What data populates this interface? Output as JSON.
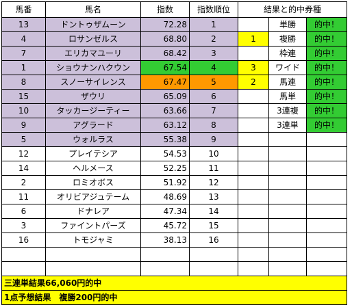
{
  "headers": [
    "馬番",
    "馬名",
    "指数",
    "指数順位",
    "結果と的中券種"
  ],
  "rows": [
    {
      "num": "13",
      "name": "ドントゥザムーン",
      "score": "72.28",
      "rank": "1",
      "result": "",
      "ticket": "単勝",
      "hit": "的中！"
    },
    {
      "num": "4",
      "name": "ロサンゼルス",
      "score": "68.80",
      "rank": "2",
      "result": "1",
      "ticket": "複勝",
      "hit": "的中！"
    },
    {
      "num": "7",
      "name": "エリカマユーリ",
      "score": "68.42",
      "rank": "3",
      "result": "",
      "ticket": "枠連",
      "hit": "的中！"
    },
    {
      "num": "1",
      "name": "ショウナンハクウン",
      "score": "67.54",
      "rank": "4",
      "result": "3",
      "ticket": "ワイド",
      "hit": "的中！"
    },
    {
      "num": "8",
      "name": "スノーサイレンス",
      "score": "67.47",
      "rank": "5",
      "result": "2",
      "ticket": "馬連",
      "hit": "的中！"
    },
    {
      "num": "15",
      "name": "ザウリ",
      "score": "65.09",
      "rank": "6",
      "result": "",
      "ticket": "馬単",
      "hit": "的中！"
    },
    {
      "num": "10",
      "name": "タッカージーティー",
      "score": "63.66",
      "rank": "7",
      "result": "",
      "ticket": "3連複",
      "hit": "的中！"
    },
    {
      "num": "9",
      "name": "アグラード",
      "score": "63.12",
      "rank": "8",
      "result": "",
      "ticket": "3連単",
      "hit": "的中！"
    },
    {
      "num": "5",
      "name": "ウォルラス",
      "score": "55.38",
      "rank": "9",
      "result": "",
      "ticket": "",
      "hit": ""
    },
    {
      "num": "12",
      "name": "プレイテシア",
      "score": "54.53",
      "rank": "10",
      "result": "",
      "ticket": "",
      "hit": ""
    },
    {
      "num": "14",
      "name": "ヘルメース",
      "score": "52.25",
      "rank": "11",
      "result": "",
      "ticket": "",
      "hit": ""
    },
    {
      "num": "2",
      "name": "ロミオボス",
      "score": "51.92",
      "rank": "12",
      "result": "",
      "ticket": "",
      "hit": ""
    },
    {
      "num": "11",
      "name": "オリビアジュテーム",
      "score": "48.69",
      "rank": "13",
      "result": "",
      "ticket": "",
      "hit": ""
    },
    {
      "num": "6",
      "name": "ドナレア",
      "score": "47.34",
      "rank": "14",
      "result": "",
      "ticket": "",
      "hit": ""
    },
    {
      "num": "3",
      "name": "ファイントパーズ",
      "score": "45.72",
      "rank": "15",
      "result": "",
      "ticket": "",
      "hit": ""
    },
    {
      "num": "16",
      "name": "トモジャミ",
      "score": "38.13",
      "rank": "16",
      "result": "",
      "ticket": "",
      "hit": ""
    },
    {
      "num": "",
      "name": "",
      "score": "",
      "rank": "",
      "result": "",
      "ticket": "",
      "hit": ""
    },
    {
      "num": "",
      "name": "",
      "score": "",
      "rank": "",
      "result": "",
      "ticket": "",
      "hit": ""
    }
  ],
  "footer": {
    "line1": "三連単結果66,060円的中",
    "line2": "1点予想結果　複勝200円的中"
  },
  "colors": {
    "top_horse_bg": "#ccc0da",
    "hit_bg": "#33cc33",
    "highlight_green": "#33cc33",
    "highlight_orange": "#ff9900",
    "result_bg": "#ffff00",
    "footer_bg": "#ffff00"
  }
}
